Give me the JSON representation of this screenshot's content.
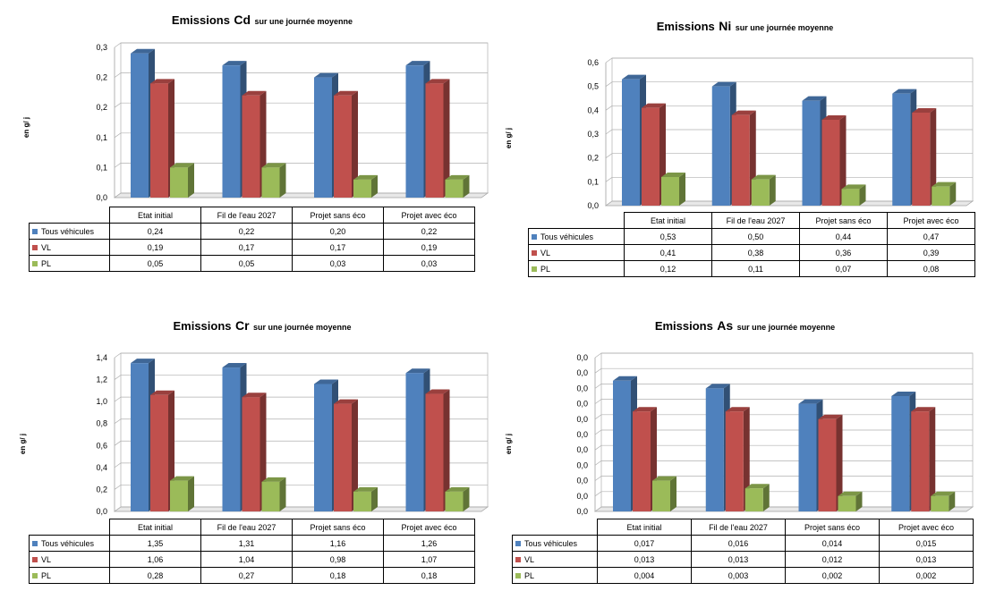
{
  "colors": {
    "tous": "#4f81bd",
    "vl": "#c0504d",
    "pl": "#9bbb59"
  },
  "chart_data": [
    {
      "type": "bar",
      "title": "Emissions Cd sur une journée moyenne",
      "title_main": "Emissions",
      "title_metal": "Cd",
      "title_sub": "sur une journée moyenne",
      "ylabel": "en g/ j",
      "categories": [
        "Etat initial",
        "Fil de l'eau 2027",
        "Projet sans éco",
        "Projet avec éco"
      ],
      "ylim": [
        0,
        0.25
      ],
      "yticks": [
        "0,0",
        "0,1",
        "0,1",
        "0,2",
        "0,2",
        "0,3"
      ],
      "series": [
        {
          "name": "Tous véhicules",
          "values": [
            0.24,
            0.22,
            0.2,
            0.22
          ],
          "labels": [
            "0,24",
            "0,22",
            "0,20",
            "0,22"
          ]
        },
        {
          "name": "VL",
          "values": [
            0.19,
            0.17,
            0.17,
            0.19
          ],
          "labels": [
            "0,19",
            "0,17",
            "0,17",
            "0,19"
          ]
        },
        {
          "name": "PL",
          "values": [
            0.05,
            0.05,
            0.03,
            0.03
          ],
          "labels": [
            "0,05",
            "0,05",
            "0,03",
            "0,03"
          ]
        }
      ],
      "legend": "table-left",
      "grid": true
    },
    {
      "type": "bar",
      "title": "Emissions Ni sur une journée moyenne",
      "title_main": "Emissions",
      "title_metal": "Ni",
      "title_sub": "sur une journée moyenne",
      "ylabel": "en g/ j",
      "categories": [
        "Etat initial",
        "Fil de l'eau 2027",
        "Projet sans éco",
        "Projet avec éco"
      ],
      "ylim": [
        0,
        0.6
      ],
      "yticks": [
        "0,0",
        "0,1",
        "0,2",
        "0,3",
        "0,4",
        "0,5",
        "0,6"
      ],
      "series": [
        {
          "name": "Tous véhicules",
          "values": [
            0.53,
            0.5,
            0.44,
            0.47
          ],
          "labels": [
            "0,53",
            "0,50",
            "0,44",
            "0,47"
          ]
        },
        {
          "name": "VL",
          "values": [
            0.41,
            0.38,
            0.36,
            0.39
          ],
          "labels": [
            "0,41",
            "0,38",
            "0,36",
            "0,39"
          ]
        },
        {
          "name": "PL",
          "values": [
            0.12,
            0.11,
            0.07,
            0.08
          ],
          "labels": [
            "0,12",
            "0,11",
            "0,07",
            "0,08"
          ]
        }
      ],
      "legend": "table-left",
      "grid": true
    },
    {
      "type": "bar",
      "title": "Emissions Cr sur une journée moyenne",
      "title_main": "Emissions",
      "title_metal": "Cr",
      "title_sub": "sur une journée moyenne",
      "ylabel": "en g/ j",
      "categories": [
        "Etat initial",
        "Fil de l'eau 2027",
        "Projet sans éco",
        "Projet avec éco"
      ],
      "ylim": [
        0,
        1.4
      ],
      "yticks": [
        "0,0",
        "0,2",
        "0,4",
        "0,6",
        "0,8",
        "1,0",
        "1,2",
        "1,4"
      ],
      "series": [
        {
          "name": "Tous véhicules",
          "values": [
            1.35,
            1.31,
            1.16,
            1.26
          ],
          "labels": [
            "1,35",
            "1,31",
            "1,16",
            "1,26"
          ]
        },
        {
          "name": "VL",
          "values": [
            1.06,
            1.04,
            0.98,
            1.07
          ],
          "labels": [
            "1,06",
            "1,04",
            "0,98",
            "1,07"
          ]
        },
        {
          "name": "PL",
          "values": [
            0.28,
            0.27,
            0.18,
            0.18
          ],
          "labels": [
            "0,28",
            "0,27",
            "0,18",
            "0,18"
          ]
        }
      ],
      "legend": "table-left",
      "grid": true
    },
    {
      "type": "bar",
      "title": "Emissions As sur une journée moyenne",
      "title_main": "Emissions",
      "title_metal": "As",
      "title_sub": "sur une journée moyenne",
      "ylabel": "en g/ j",
      "categories": [
        "Etat initial",
        "Fil de l'eau 2027",
        "Projet sans éco",
        "Projet avec éco"
      ],
      "ylim": [
        0,
        0.02
      ],
      "yticks": [
        "0,0",
        "0,0",
        "0,0",
        "0,0",
        "0,0",
        "0,0",
        "0,0",
        "0,0",
        "0,0",
        "0,0",
        "0,0"
      ],
      "series": [
        {
          "name": "Tous véhicules",
          "values": [
            0.017,
            0.016,
            0.014,
            0.015
          ],
          "labels": [
            "0,017",
            "0,016",
            "0,014",
            "0,015"
          ]
        },
        {
          "name": "VL",
          "values": [
            0.013,
            0.013,
            0.012,
            0.013
          ],
          "labels": [
            "0,013",
            "0,013",
            "0,012",
            "0,013"
          ]
        },
        {
          "name": "PL",
          "values": [
            0.004,
            0.003,
            0.002,
            0.002
          ],
          "labels": [
            "0,004",
            "0,003",
            "0,002",
            "0,002"
          ]
        }
      ],
      "legend": "table-left",
      "grid": true
    }
  ]
}
